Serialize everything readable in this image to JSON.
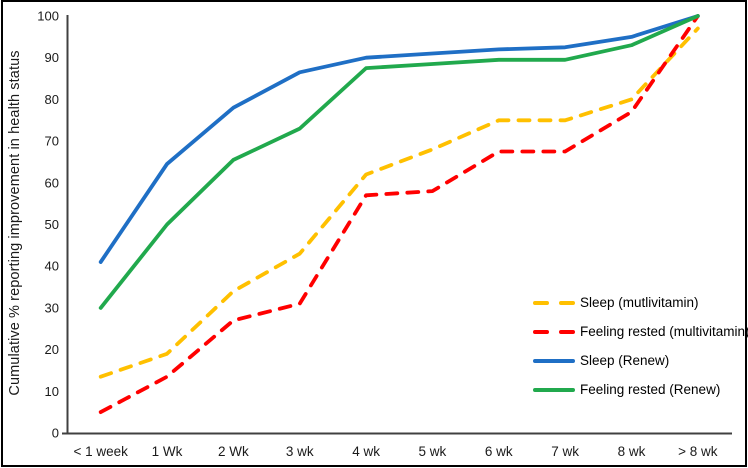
{
  "frame": {
    "background": "#ffffff",
    "border_color": "#000000"
  },
  "chart_data": {
    "type": "line",
    "title": "",
    "xlabel": "",
    "ylabel": "Cumulative % reporting improvement in health status",
    "ylim": [
      0,
      100
    ],
    "yticks": [
      0,
      10,
      20,
      30,
      40,
      50,
      60,
      70,
      80,
      90,
      100
    ],
    "grid": false,
    "legend_position": "inside bottom-right",
    "categories": [
      "< 1 week",
      "1 Wk",
      "2 Wk",
      "3 wk",
      "4 wk",
      "5 wk",
      "6 wk",
      "7 wk",
      "8 wk",
      "> 8 wk"
    ],
    "series": [
      {
        "name": "Sleep (mutlivitamin)",
        "color": "#FFC000",
        "line_style": "dashed",
        "values": [
          13.5,
          19,
          34,
          43,
          62,
          68,
          75,
          75,
          80,
          97
        ]
      },
      {
        "name": "Feeling rested (multivitamin)",
        "color": "#FF0000",
        "line_style": "dashed",
        "values": [
          5,
          13.5,
          27,
          31,
          57,
          58,
          67.5,
          67.5,
          77,
          100
        ]
      },
      {
        "name": "Sleep (Renew)",
        "color": "#1F6FC5",
        "line_style": "solid",
        "values": [
          41,
          64.5,
          78,
          86.5,
          90,
          91,
          92,
          92.5,
          95,
          100
        ]
      },
      {
        "name": "Feeling rested (Renew)",
        "color": "#21A94D",
        "line_style": "solid",
        "values": [
          30,
          50,
          65.5,
          73,
          87.5,
          88.5,
          89.5,
          89.5,
          93,
          100
        ]
      }
    ]
  }
}
